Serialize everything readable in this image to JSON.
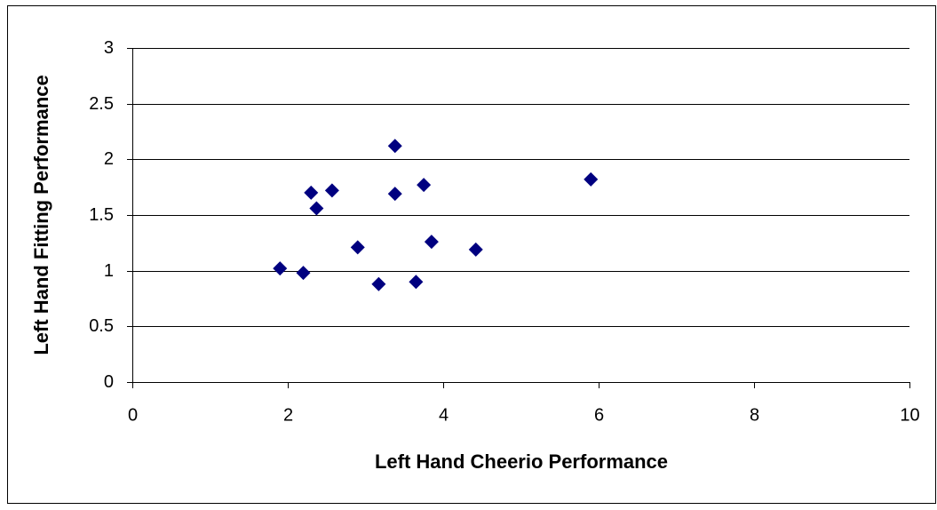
{
  "chart_data": {
    "type": "scatter",
    "x_label": "Left Hand Cheerio Performance",
    "y_label": "Left Hand Fitting Performance",
    "series": [
      {
        "color": "#000080",
        "x": [
          1.9,
          2.2,
          2.3,
          2.37,
          2.57,
          2.9,
          3.17,
          3.38,
          3.38,
          3.65,
          3.75,
          3.85,
          4.42,
          5.9
        ],
        "values": [
          1.02,
          0.98,
          1.7,
          1.56,
          1.72,
          1.21,
          0.88,
          2.12,
          1.69,
          0.9,
          1.77,
          1.26,
          1.19,
          1.82
        ]
      }
    ],
    "xlim": [
      0,
      10
    ],
    "xticks": [
      0,
      2,
      4,
      6,
      8,
      10
    ],
    "ylim": [
      0,
      3
    ],
    "yticks": [
      0,
      0.5,
      1,
      1.5,
      2,
      2.5,
      3
    ],
    "grid": true
  }
}
